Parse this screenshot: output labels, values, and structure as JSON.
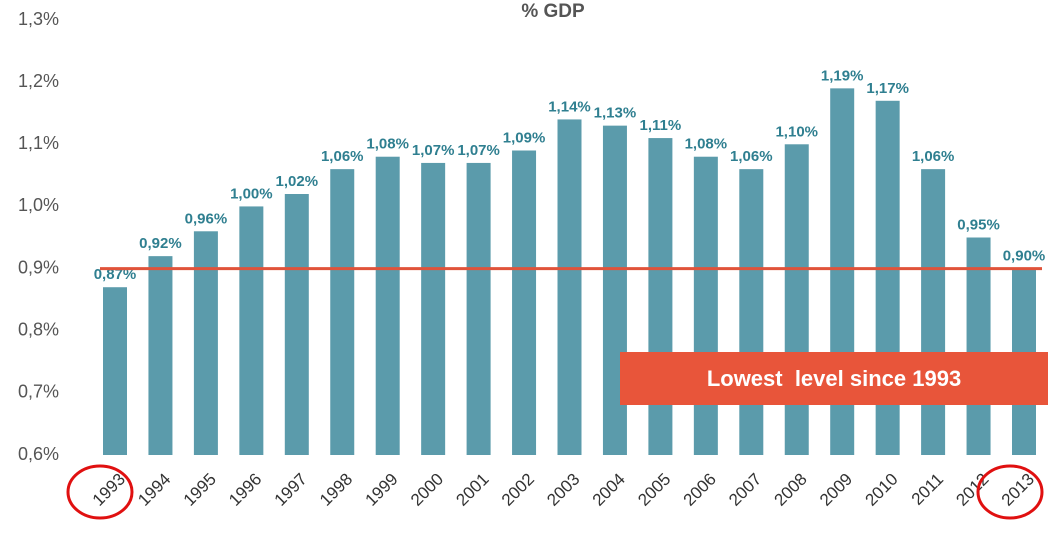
{
  "chart_data": {
    "type": "bar",
    "title": "% GDP",
    "categories": [
      "1993",
      "1994",
      "1995",
      "1996",
      "1997",
      "1998",
      "1999",
      "2000",
      "2001",
      "2002",
      "2003",
      "2004",
      "2005",
      "2006",
      "2007",
      "2008",
      "2009",
      "2010",
      "2011",
      "2012",
      "2013"
    ],
    "values": [
      0.87,
      0.92,
      0.96,
      1.0,
      1.02,
      1.06,
      1.08,
      1.07,
      1.07,
      1.09,
      1.14,
      1.13,
      1.11,
      1.08,
      1.06,
      1.1,
      1.19,
      1.17,
      1.06,
      0.95,
      0.9
    ],
    "value_labels": [
      "0,87%",
      "0,92%",
      "0,96%",
      "1,00%",
      "1,02%",
      "1,06%",
      "1,08%",
      "1,07%",
      "1,07%",
      "1,09%",
      "1,14%",
      "1,13%",
      "1,11%",
      "1,08%",
      "1,06%",
      "1,10%",
      "1,19%",
      "1,17%",
      "1,06%",
      "0,95%",
      "0,90%"
    ],
    "color": "#5b9bab",
    "ylim": [
      0.6,
      1.3
    ],
    "yticks": [
      {
        "value": 0.6,
        "label": "0,6%"
      },
      {
        "value": 0.7,
        "label": "0,7%"
      },
      {
        "value": 0.8,
        "label": "0,8%"
      },
      {
        "value": 0.9,
        "label": "0,9%"
      },
      {
        "value": 1.0,
        "label": "1,0%"
      },
      {
        "value": 1.1,
        "label": "1,1%"
      },
      {
        "value": 1.2,
        "label": "1,2%"
      },
      {
        "value": 1.3,
        "label": "1,3%"
      }
    ],
    "reference_line": {
      "value": 0.9,
      "color": "#e0533a"
    },
    "annotation": "Lowest  level since 1993"
  }
}
